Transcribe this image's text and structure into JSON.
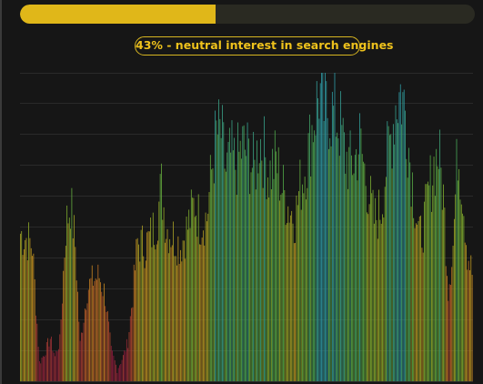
{
  "progress": {
    "percent": 43,
    "fill_color": "#e0b719",
    "track_color": "#2a2a22"
  },
  "badge": {
    "text": "43% - neutral interest in search engines",
    "color": "#efc21c"
  },
  "chart_data": {
    "type": "bar",
    "title": "",
    "xlabel": "",
    "ylabel": "",
    "grid": true,
    "ylim": [
      0,
      100
    ],
    "color_scale": [
      "#8b1c3c",
      "#b5502a",
      "#c9921f",
      "#86ad2a",
      "#4ea84a",
      "#2e9aa4"
    ],
    "keypoints": [
      [
        0,
        48
      ],
      [
        6,
        46
      ],
      [
        10,
        44
      ],
      [
        16,
        6
      ],
      [
        20,
        9
      ],
      [
        25,
        14
      ],
      [
        29,
        8
      ],
      [
        33,
        13
      ],
      [
        38,
        50
      ],
      [
        42,
        58
      ],
      [
        46,
        44
      ],
      [
        50,
        12
      ],
      [
        56,
        30
      ],
      [
        61,
        33
      ],
      [
        66,
        34
      ],
      [
        71,
        28
      ],
      [
        76,
        10
      ],
      [
        81,
        4
      ],
      [
        86,
        8
      ],
      [
        90,
        13
      ],
      [
        94,
        28
      ],
      [
        98,
        45
      ],
      [
        104,
        44
      ],
      [
        108,
        46
      ],
      [
        114,
        52
      ],
      [
        118,
        63
      ],
      [
        122,
        50
      ],
      [
        128,
        47
      ],
      [
        134,
        44
      ],
      [
        140,
        50
      ],
      [
        146,
        58
      ],
      [
        150,
        52
      ],
      [
        156,
        53
      ],
      [
        160,
        68
      ],
      [
        164,
        80
      ],
      [
        168,
        80
      ],
      [
        172,
        68
      ],
      [
        176,
        73
      ],
      [
        180,
        70
      ],
      [
        186,
        76
      ],
      [
        190,
        74
      ],
      [
        196,
        68
      ],
      [
        200,
        79
      ],
      [
        204,
        74
      ],
      [
        208,
        67
      ],
      [
        214,
        72
      ],
      [
        218,
        64
      ],
      [
        224,
        57
      ],
      [
        230,
        53
      ],
      [
        234,
        63
      ],
      [
        240,
        72
      ],
      [
        244,
        82
      ],
      [
        250,
        94
      ],
      [
        254,
        88
      ],
      [
        258,
        88
      ],
      [
        264,
        86
      ],
      [
        268,
        82
      ],
      [
        272,
        73
      ],
      [
        276,
        70
      ],
      [
        280,
        72
      ],
      [
        284,
        78
      ],
      [
        288,
        68
      ],
      [
        292,
        60
      ],
      [
        296,
        52
      ],
      [
        302,
        56
      ],
      [
        306,
        70
      ],
      [
        310,
        79
      ],
      [
        314,
        90
      ],
      [
        318,
        94
      ],
      [
        322,
        88
      ],
      [
        326,
        72
      ],
      [
        330,
        58
      ],
      [
        334,
        46
      ],
      [
        338,
        52
      ],
      [
        342,
        62
      ],
      [
        346,
        70
      ],
      [
        350,
        74
      ],
      [
        354,
        60
      ],
      [
        358,
        30
      ],
      [
        362,
        44
      ],
      [
        366,
        76
      ],
      [
        370,
        62
      ],
      [
        374,
        42
      ],
      [
        378,
        35
      ]
    ]
  }
}
